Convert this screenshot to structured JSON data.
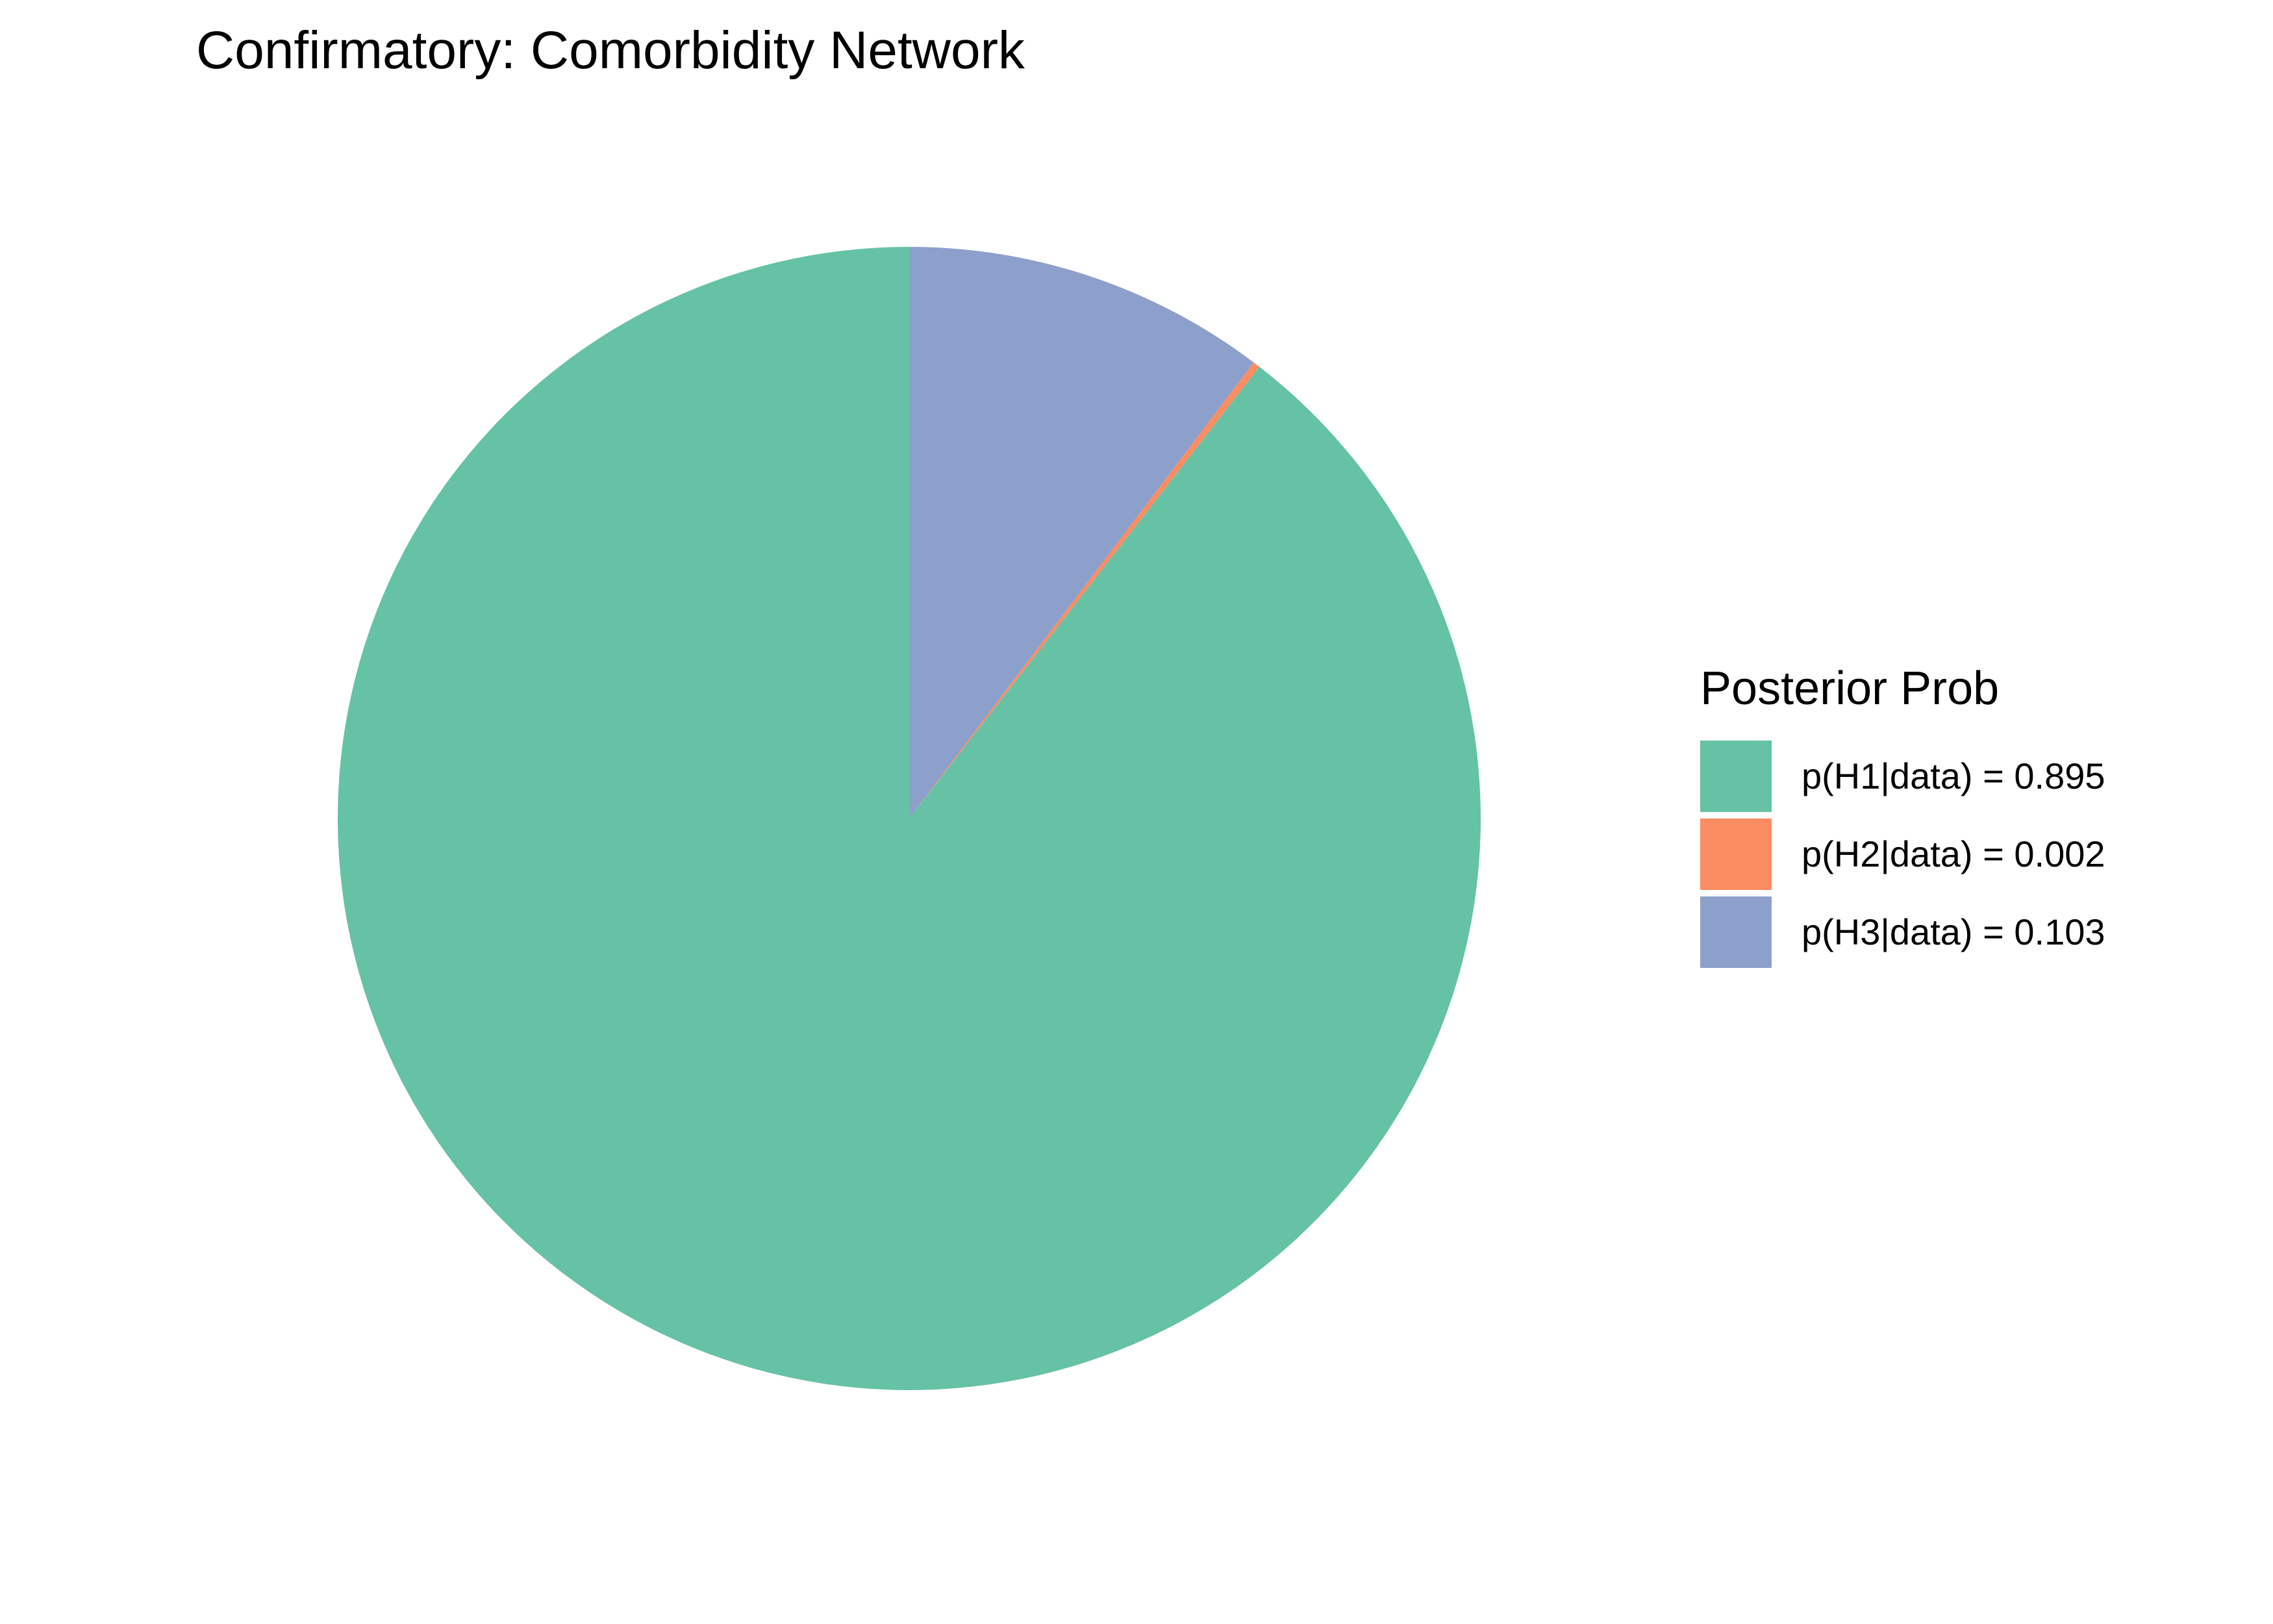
{
  "chart_data": {
    "type": "pie",
    "title": "Confirmatory: Comorbidity Network",
    "legend": {
      "title": "Posterior Prob",
      "placement": "right"
    },
    "slices": [
      {
        "label": "p(H1|data) = 0.895",
        "value": 0.895,
        "color": "#66C2A5"
      },
      {
        "label": "p(H2|data) = 0.002",
        "value": 0.002,
        "color": "#FC8D62"
      },
      {
        "label": "p(H3|data) = 0.103",
        "value": 0.103,
        "color": "#8DA0CB"
      }
    ]
  }
}
